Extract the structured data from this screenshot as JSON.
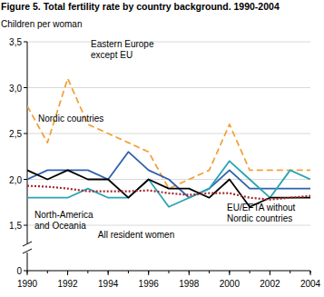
{
  "chart_data": {
    "type": "line",
    "title": "Figure 5. Total fertility rate by country background. 1990-2004",
    "y_label": "Children per woman",
    "x": [
      1990,
      1991,
      1992,
      1993,
      1994,
      1995,
      1996,
      1997,
      1998,
      1999,
      2000,
      2001,
      2002,
      2003,
      2004
    ],
    "xlim": [
      1990,
      2004
    ],
    "xticks": [
      1990,
      1992,
      1994,
      1996,
      1998,
      2000,
      2002,
      2004
    ],
    "ylim": [
      0,
      3.5
    ],
    "yticks": [
      {
        "value": 0,
        "label": "0"
      },
      {
        "value": 1.5,
        "label": "1,5"
      },
      {
        "value": 2.0,
        "label": "2,0"
      },
      {
        "value": 2.5,
        "label": "2,5"
      },
      {
        "value": 3.0,
        "label": "3,0"
      },
      {
        "value": 3.5,
        "label": "3,5"
      }
    ],
    "grid": true,
    "series": [
      {
        "name": "Eastern Europe except EU",
        "color": "#f2a23a",
        "line_style": "dashed",
        "values": [
          2.8,
          2.4,
          3.1,
          2.6,
          2.5,
          2.4,
          2.3,
          1.9,
          2.0,
          2.1,
          2.6,
          2.1,
          2.1,
          2.1,
          2.1
        ]
      },
      {
        "name": "Nordic countries",
        "color": "#2e5fae",
        "line_style": "solid",
        "values": [
          2.0,
          2.1,
          2.1,
          2.1,
          2.0,
          2.3,
          2.1,
          2.0,
          1.8,
          1.9,
          2.1,
          1.9,
          1.9,
          1.9,
          1.9
        ]
      },
      {
        "name": "North-America and Oceania",
        "color": "#2aa3b3",
        "line_style": "solid",
        "values": [
          1.8,
          1.8,
          1.8,
          1.9,
          1.8,
          1.8,
          2.0,
          1.7,
          1.8,
          1.9,
          2.2,
          2.0,
          1.8,
          2.1,
          2.0
        ]
      },
      {
        "name": "All resident women",
        "color": "#000000",
        "line_style": "solid",
        "values": [
          2.1,
          2.0,
          2.1,
          2.0,
          2.0,
          1.8,
          2.0,
          1.9,
          1.9,
          1.8,
          2.0,
          1.7,
          1.8,
          1.8,
          1.8
        ]
      },
      {
        "name": "EU/EFTA without Nordic countries",
        "color": "#a3262a",
        "line_style": "dotted",
        "values": [
          1.93,
          1.92,
          1.9,
          1.87,
          1.87,
          1.87,
          1.88,
          1.85,
          1.83,
          1.85,
          1.85,
          1.8,
          1.78,
          1.8,
          1.82
        ]
      }
    ]
  }
}
